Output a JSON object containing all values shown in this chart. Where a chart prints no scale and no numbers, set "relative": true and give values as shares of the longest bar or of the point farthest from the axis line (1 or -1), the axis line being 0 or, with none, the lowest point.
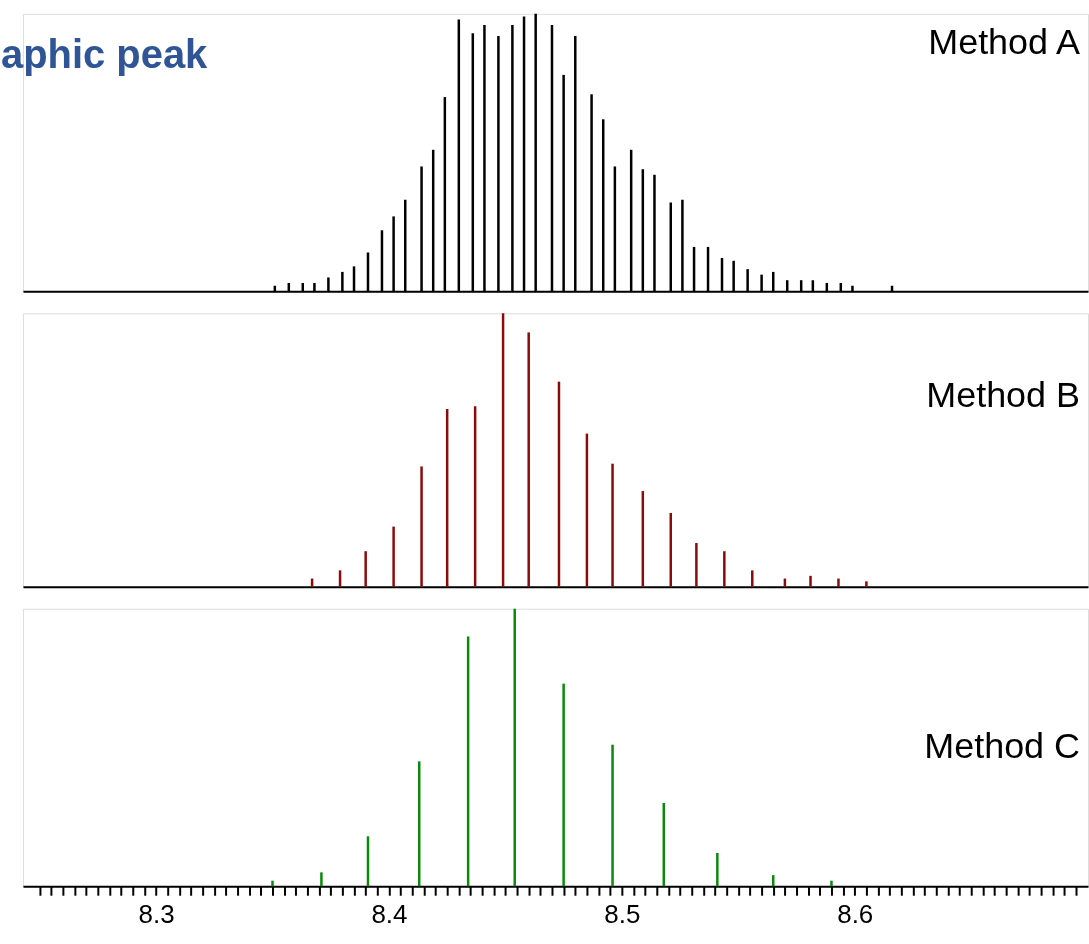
{
  "chart_data": [
    {
      "type": "bar",
      "title": "aphic peak",
      "relative": true,
      "xlim": [
        8.245,
        8.698
      ],
      "tick_labels": false,
      "grid": false,
      "x": [
        8.351,
        8.357,
        8.363,
        8.368,
        8.374,
        8.38,
        8.385,
        8.391,
        8.397,
        8.402,
        8.407,
        8.414,
        8.419,
        8.424,
        8.43,
        8.436,
        8.441,
        8.447,
        8.453,
        8.458,
        8.463,
        8.47,
        8.475,
        8.48,
        8.487,
        8.492,
        8.497,
        8.504,
        8.509,
        8.514,
        8.521,
        8.526,
        8.531,
        8.537,
        8.543,
        8.548,
        8.554,
        8.56,
        8.565,
        8.571,
        8.577,
        8.582,
        8.588,
        8.594,
        8.599,
        8.616
      ],
      "series": [
        {
          "name": "Method A",
          "color": "#000000",
          "values": [
            0.02,
            0.03,
            0.03,
            0.03,
            0.05,
            0.07,
            0.09,
            0.14,
            0.22,
            0.27,
            0.33,
            0.45,
            0.51,
            0.7,
            0.98,
            0.93,
            0.96,
            0.92,
            0.96,
            0.99,
            1,
            0.96,
            0.78,
            0.92,
            0.71,
            0.62,
            0.45,
            0.51,
            0.44,
            0.42,
            0.32,
            0.33,
            0.16,
            0.16,
            0.12,
            0.11,
            0.08,
            0.06,
            0.07,
            0.04,
            0.04,
            0.04,
            0.03,
            0.03,
            0.02,
            0.02
          ]
        }
      ]
    },
    {
      "type": "bar",
      "relative": true,
      "xlim": [
        8.245,
        8.698
      ],
      "tick_labels": false,
      "grid": false,
      "x": [
        8.367,
        8.379,
        8.39,
        8.402,
        8.414,
        8.425,
        8.437,
        8.449,
        8.46,
        8.473,
        8.485,
        8.496,
        8.509,
        8.521,
        8.532,
        8.544,
        8.556,
        8.57,
        8.581,
        8.593,
        8.605
      ],
      "series": [
        {
          "name": "Method B",
          "color": "#8b0a0a",
          "values": [
            0.03,
            0.06,
            0.13,
            0.22,
            0.44,
            0.65,
            0.66,
            1,
            0.93,
            0.75,
            0.56,
            0.45,
            0.35,
            0.27,
            0.16,
            0.13,
            0.06,
            0.03,
            0.04,
            0.03,
            0.02
          ]
        }
      ]
    },
    {
      "type": "bar",
      "relative": true,
      "xlim": [
        8.245,
        8.698
      ],
      "tick_labels": "x",
      "grid": false,
      "xticks": [
        {
          "value": 8.25,
          "label": null
        },
        {
          "value": 8.255,
          "label": null
        },
        {
          "value": 8.26,
          "label": null
        },
        {
          "value": 8.265,
          "label": null
        },
        {
          "value": 8.27,
          "label": null
        },
        {
          "value": 8.275,
          "label": null
        },
        {
          "value": 8.28,
          "label": null
        },
        {
          "value": 8.285,
          "label": null
        },
        {
          "value": 8.29,
          "label": null
        },
        {
          "value": 8.295,
          "label": null
        },
        8.3,
        {
          "value": 8.305,
          "label": null
        },
        {
          "value": 8.31,
          "label": null
        },
        {
          "value": 8.315,
          "label": null
        },
        {
          "value": 8.32,
          "label": null
        },
        {
          "value": 8.325,
          "label": null
        },
        {
          "value": 8.33,
          "label": null
        },
        {
          "value": 8.335,
          "label": null
        },
        {
          "value": 8.34,
          "label": null
        },
        {
          "value": 8.345,
          "label": null
        },
        {
          "value": 8.35,
          "label": null
        },
        {
          "value": 8.355,
          "label": null
        },
        {
          "value": 8.36,
          "label": null
        },
        {
          "value": 8.365,
          "label": null
        },
        {
          "value": 8.37,
          "label": null
        },
        {
          "value": 8.375,
          "label": null
        },
        {
          "value": 8.38,
          "label": null
        },
        {
          "value": 8.385,
          "label": null
        },
        {
          "value": 8.39,
          "label": null
        },
        {
          "value": 8.395,
          "label": null
        },
        8.4,
        {
          "value": 8.405,
          "label": null
        },
        {
          "value": 8.41,
          "label": null
        },
        {
          "value": 8.415,
          "label": null
        },
        {
          "value": 8.42,
          "label": null
        },
        {
          "value": 8.425,
          "label": null
        },
        {
          "value": 8.43,
          "label": null
        },
        {
          "value": 8.435,
          "label": null
        },
        {
          "value": 8.44,
          "label": null
        },
        {
          "value": 8.445,
          "label": null
        },
        {
          "value": 8.45,
          "label": null
        },
        {
          "value": 8.455,
          "label": null
        },
        {
          "value": 8.46,
          "label": null
        },
        {
          "value": 8.465,
          "label": null
        },
        {
          "value": 8.47,
          "label": null
        },
        {
          "value": 8.475,
          "label": null
        },
        {
          "value": 8.48,
          "label": null
        },
        {
          "value": 8.485,
          "label": null
        },
        {
          "value": 8.49,
          "label": null
        },
        {
          "value": 8.495,
          "label": null
        },
        8.5,
        {
          "value": 8.505,
          "label": null
        },
        {
          "value": 8.51,
          "label": null
        },
        {
          "value": 8.515,
          "label": null
        },
        {
          "value": 8.52,
          "label": null
        },
        {
          "value": 8.525,
          "label": null
        },
        {
          "value": 8.53,
          "label": null
        },
        {
          "value": 8.535,
          "label": null
        },
        {
          "value": 8.54,
          "label": null
        },
        {
          "value": 8.545,
          "label": null
        },
        {
          "value": 8.55,
          "label": null
        },
        {
          "value": 8.555,
          "label": null
        },
        {
          "value": 8.56,
          "label": null
        },
        {
          "value": 8.565,
          "label": null
        },
        {
          "value": 8.57,
          "label": null
        },
        {
          "value": 8.575,
          "label": null
        },
        {
          "value": 8.58,
          "label": null
        },
        {
          "value": 8.585,
          "label": null
        },
        {
          "value": 8.59,
          "label": null
        },
        {
          "value": 8.595,
          "label": null
        },
        8.6,
        {
          "value": 8.605,
          "label": null
        },
        {
          "value": 8.61,
          "label": null
        },
        {
          "value": 8.615,
          "label": null
        },
        {
          "value": 8.62,
          "label": null
        },
        {
          "value": 8.625,
          "label": null
        },
        {
          "value": 8.63,
          "label": null
        },
        {
          "value": 8.635,
          "label": null
        },
        {
          "value": 8.64,
          "label": null
        },
        {
          "value": 8.645,
          "label": null
        },
        {
          "value": 8.65,
          "label": null
        },
        {
          "value": 8.655,
          "label": null
        },
        {
          "value": 8.66,
          "label": null
        },
        {
          "value": 8.665,
          "label": null
        },
        {
          "value": 8.67,
          "label": null
        },
        {
          "value": 8.675,
          "label": null
        },
        {
          "value": 8.68,
          "label": null
        },
        {
          "value": 8.685,
          "label": null
        },
        {
          "value": 8.69,
          "label": null
        },
        {
          "value": 8.695,
          "label": null
        }
      ],
      "x": [
        8.35,
        8.371,
        8.391,
        8.413,
        8.434,
        8.454,
        8.475,
        8.496,
        8.518,
        8.541,
        8.565,
        8.59
      ],
      "series": [
        {
          "name": "Method C",
          "color": "#0a8a0a",
          "values": [
            0.02,
            0.05,
            0.18,
            0.45,
            0.9,
            1,
            0.73,
            0.51,
            0.3,
            0.12,
            0.04,
            0.02
          ]
        }
      ]
    }
  ]
}
